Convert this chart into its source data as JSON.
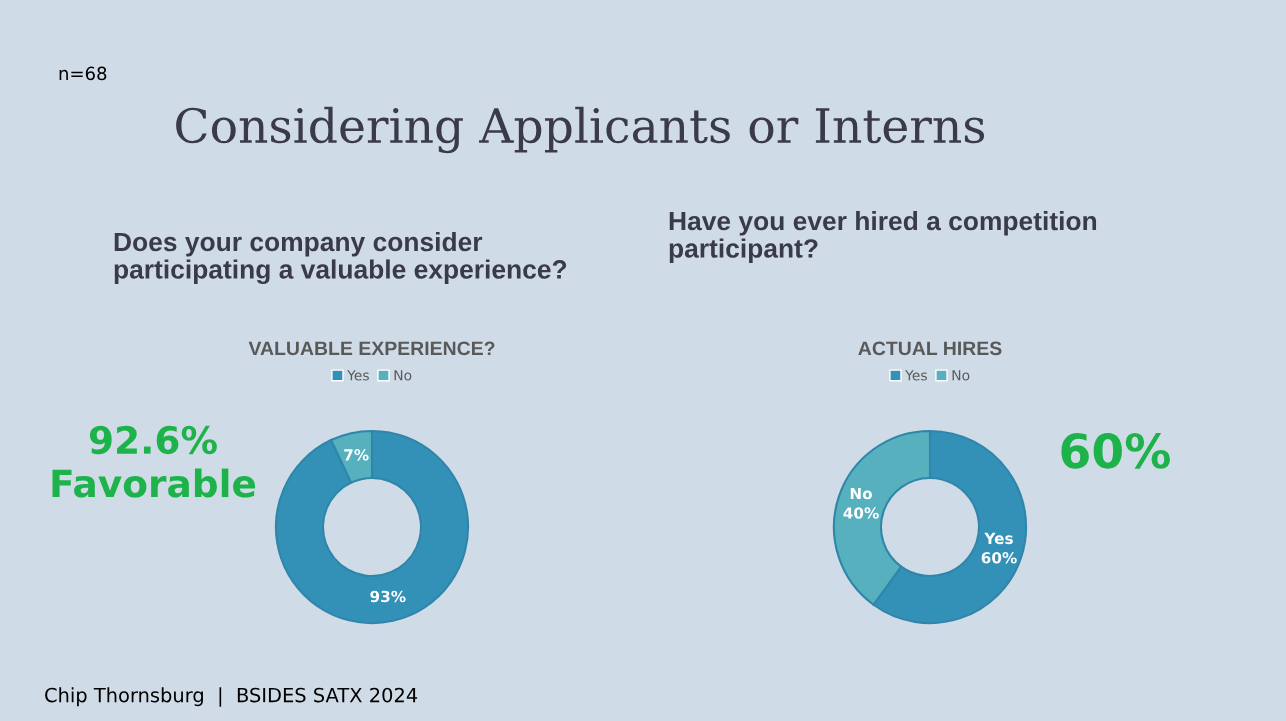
{
  "chart_data": [
    {
      "type": "donut",
      "title": "VALUABLE EXPERIENCE?",
      "subtitle": "Does your company consider participating a valuable experience?",
      "categories": [
        "Yes",
        "No"
      ],
      "values": [
        93,
        7
      ],
      "colors": [
        "#3391b8",
        "#56b0bd"
      ],
      "value_labels": [
        "93%",
        "7%"
      ],
      "legend": "top",
      "annotations": [
        "Considering Applicants or Interns",
        "n=68",
        "92.6%\nFavorable",
        "Chip Thornsburg  |  BSIDES SATX 2024"
      ]
    },
    {
      "type": "donut",
      "title": "ACTUAL HIRES",
      "subtitle": "Have you ever hired a competition participant?",
      "categories": [
        "Yes",
        "No"
      ],
      "values": [
        60,
        40
      ],
      "colors": [
        "#3391b8",
        "#56b0bd"
      ],
      "value_labels": [
        "Yes\n60%",
        "No\n40%"
      ],
      "legend": "top",
      "annotations": [
        "60%"
      ]
    }
  ]
}
